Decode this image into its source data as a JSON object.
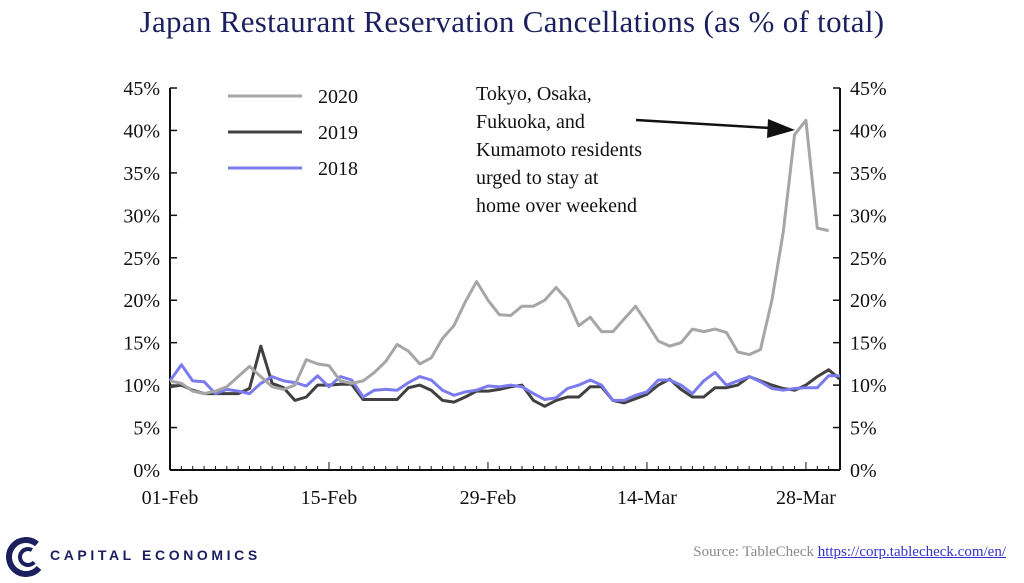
{
  "title": "Japan Restaurant Reservation Cancellations (as % of total)",
  "source": {
    "label": "Source: TableCheck",
    "url_text": "https://corp.tablecheck.com/en/"
  },
  "logo": {
    "text": "CAPITAL ECONOMICS",
    "icon": "capital-economics-logo-icon",
    "color": "#1b1f5e"
  },
  "annotation": {
    "lines": [
      "Tokyo, Osaka,",
      "Fukuoka, and",
      "Kumamoto residents",
      "urged to stay at",
      "home over weekend"
    ]
  },
  "chart_data": {
    "type": "line",
    "title": "Japan Restaurant Reservation Cancellations (as % of total)",
    "xlabel": "",
    "ylabel": "",
    "ylim": [
      0,
      45
    ],
    "y_ticks": [
      0,
      5,
      10,
      15,
      20,
      25,
      30,
      35,
      40,
      45
    ],
    "y_tick_labels": [
      "0%",
      "5%",
      "10%",
      "15%",
      "20%",
      "25%",
      "30%",
      "35%",
      "40%",
      "45%"
    ],
    "y_axis_right": true,
    "x_tick_labels": [
      "01-Feb",
      "15-Feb",
      "29-Feb",
      "14-Mar",
      "28-Mar"
    ],
    "x_tick_days": [
      1,
      15,
      29,
      43,
      57
    ],
    "grid": false,
    "legend_position": "top-left",
    "x_days": [
      1,
      2,
      3,
      4,
      5,
      6,
      7,
      8,
      9,
      10,
      11,
      12,
      13,
      14,
      15,
      16,
      17,
      18,
      19,
      20,
      21,
      22,
      23,
      24,
      25,
      26,
      27,
      28,
      29,
      30,
      31,
      32,
      33,
      34,
      35,
      36,
      37,
      38,
      39,
      40,
      41,
      42,
      43,
      44,
      45,
      46,
      47,
      48,
      49,
      50,
      51,
      52,
      53,
      54,
      55,
      56,
      57,
      58,
      59,
      60
    ],
    "series": [
      {
        "name": "2020",
        "color": "#a6a6a6",
        "values": [
          10.5,
          10.2,
          9.3,
          9.0,
          9.3,
          9.8,
          11.0,
          12.2,
          11.0,
          9.8,
          9.5,
          10.0,
          13.0,
          12.5,
          12.3,
          10.5,
          10.2,
          10.5,
          11.5,
          12.8,
          14.8,
          14.0,
          12.5,
          13.2,
          15.5,
          17.0,
          19.8,
          22.2,
          20.0,
          18.3,
          18.2,
          19.3,
          19.3,
          20.0,
          21.5,
          20.0,
          17.0,
          18.0,
          16.3,
          16.3,
          17.8,
          19.3,
          17.3,
          15.2,
          14.6,
          15.0,
          16.6,
          16.3,
          16.6,
          16.2,
          13.9,
          13.6,
          14.2,
          20.0,
          28.0,
          39.5,
          41.2,
          28.5,
          28.2
        ]
      },
      {
        "name": "2019",
        "color": "#404040",
        "values": [
          9.8,
          10.0,
          9.4,
          9.0,
          9.0,
          9.0,
          9.0,
          9.6,
          14.6,
          10.2,
          9.7,
          8.2,
          8.6,
          10.0,
          10.0,
          10.1,
          10.1,
          8.3,
          8.3,
          8.3,
          8.3,
          9.7,
          10.0,
          9.4,
          8.2,
          8.0,
          8.6,
          9.3,
          9.3,
          9.5,
          9.8,
          10.0,
          8.2,
          7.5,
          8.2,
          8.6,
          8.6,
          9.8,
          9.8,
          8.2,
          7.9,
          8.4,
          8.9,
          10.0,
          10.7,
          9.5,
          8.6,
          8.6,
          9.7,
          9.7,
          10.0,
          11.0,
          10.5,
          10.0,
          9.6,
          9.4,
          10.0,
          11.0,
          11.8,
          10.7
        ]
      },
      {
        "name": "2018",
        "color": "#7b7bee",
        "values": [
          10.5,
          12.4,
          10.5,
          10.4,
          9.0,
          9.5,
          9.3,
          9.0,
          10.2,
          11.0,
          10.5,
          10.3,
          9.9,
          11.1,
          9.8,
          11.0,
          10.6,
          8.6,
          9.4,
          9.5,
          9.4,
          10.3,
          11.0,
          10.6,
          9.4,
          8.8,
          9.2,
          9.4,
          9.9,
          9.8,
          10.0,
          9.8,
          9.0,
          8.3,
          8.5,
          9.6,
          10.0,
          10.6,
          10.0,
          8.2,
          8.2,
          8.8,
          9.2,
          10.6,
          10.6,
          10.0,
          9.0,
          10.5,
          11.5,
          10.0,
          10.5,
          11.0,
          10.4,
          9.6,
          9.4,
          9.6,
          9.7,
          9.7,
          11.1,
          11.1
        ]
      }
    ]
  }
}
